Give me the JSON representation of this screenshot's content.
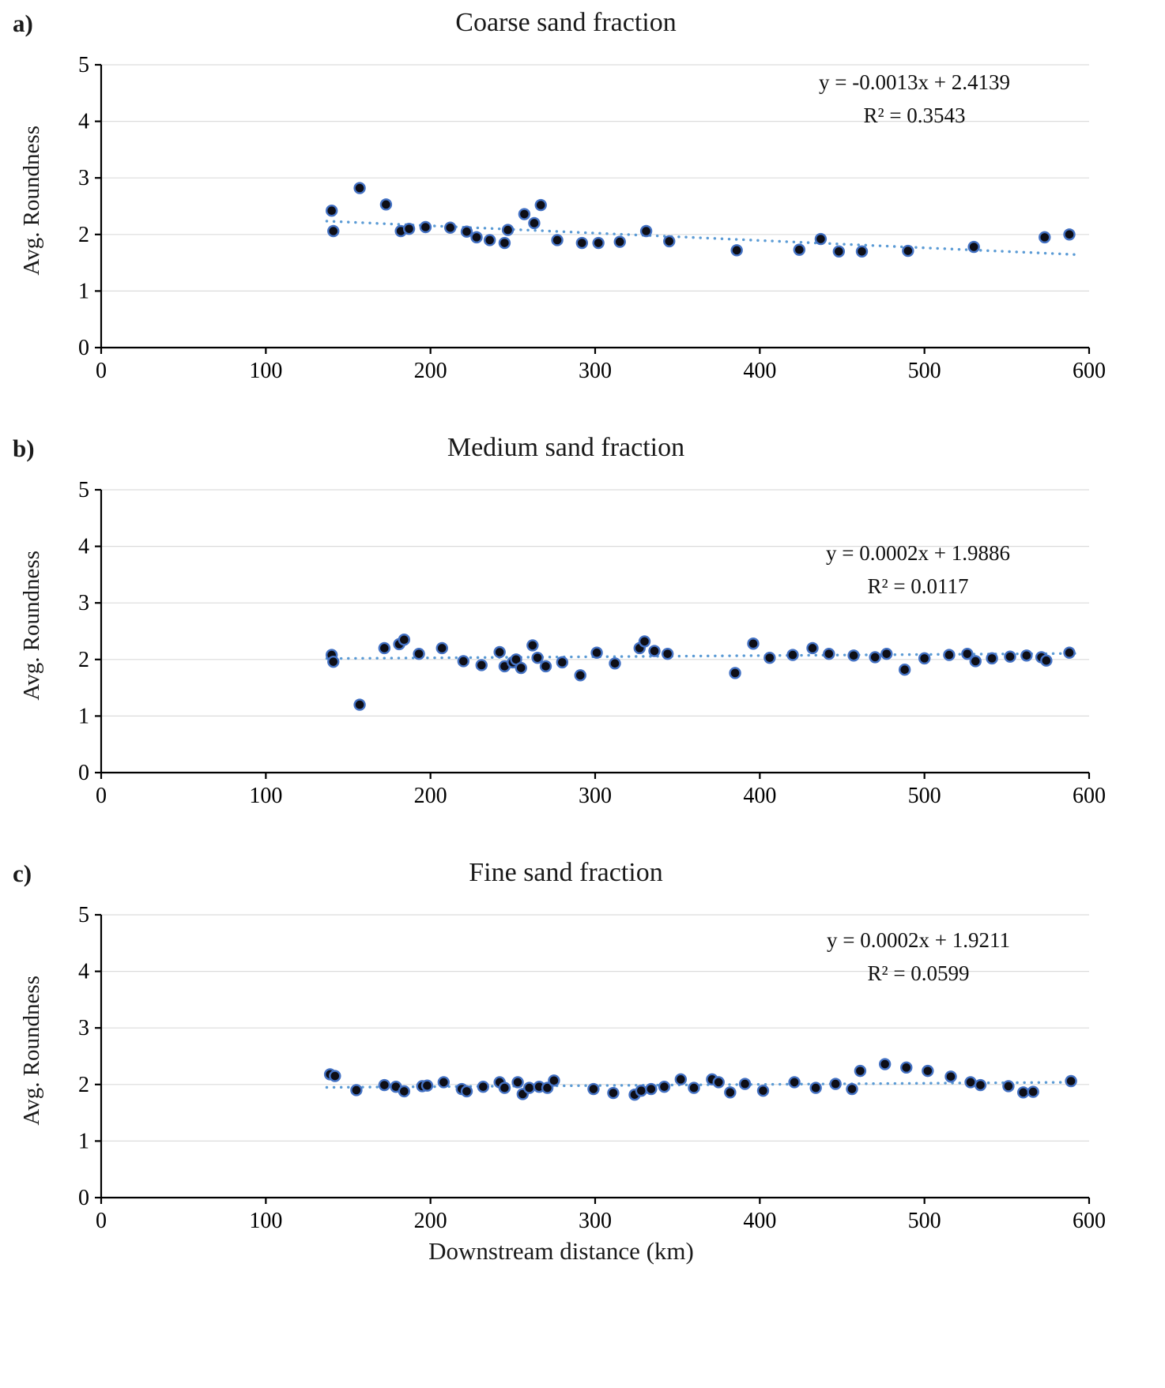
{
  "colors": {
    "point_fill": "#0e0e16",
    "point_stroke": "#4472C4",
    "trend": "#5B9BD5",
    "grid": "#DCDCDC",
    "axis": "#000000",
    "tick_text": "#000000"
  },
  "bottom_axis_title": "Downstream distance (km)",
  "chart_data": [
    {
      "type": "scatter",
      "panel_label": "a)",
      "title": "Coarse sand fraction",
      "ylabel": "Avg. Roundness",
      "xlabel": "",
      "equation": "y = -0.0013x + 2.4139",
      "r_squared": "R² = 0.3543",
      "xlim": [
        0,
        600
      ],
      "ylim": [
        0,
        5
      ],
      "x_ticks": [
        0,
        100,
        200,
        300,
        400,
        500,
        600
      ],
      "y_ticks": [
        0,
        1,
        2,
        3,
        4,
        5
      ],
      "trendline": {
        "slope": -0.0013,
        "intercept": 2.4139,
        "x_range": [
          137,
          592
        ]
      },
      "points": [
        [
          140,
          2.42
        ],
        [
          141,
          2.06
        ],
        [
          157,
          2.82
        ],
        [
          173,
          2.53
        ],
        [
          182,
          2.06
        ],
        [
          187,
          2.1
        ],
        [
          197,
          2.13
        ],
        [
          212,
          2.12
        ],
        [
          222,
          2.05
        ],
        [
          228,
          1.95
        ],
        [
          236,
          1.9
        ],
        [
          245,
          1.85
        ],
        [
          247,
          2.08
        ],
        [
          257,
          2.36
        ],
        [
          263,
          2.2
        ],
        [
          267,
          2.52
        ],
        [
          277,
          1.9
        ],
        [
          292,
          1.85
        ],
        [
          302,
          1.85
        ],
        [
          315,
          1.87
        ],
        [
          331,
          2.06
        ],
        [
          345,
          1.88
        ],
        [
          386,
          1.72
        ],
        [
          424,
          1.73
        ],
        [
          437,
          1.92
        ],
        [
          448,
          1.7
        ],
        [
          462,
          1.7
        ],
        [
          490,
          1.71
        ],
        [
          530,
          1.78
        ],
        [
          573,
          1.95
        ],
        [
          588,
          2.0
        ]
      ]
    },
    {
      "type": "scatter",
      "panel_label": "b)",
      "title": "Medium sand fraction",
      "ylabel": "Avg. Roundness",
      "xlabel": "",
      "equation": "y = 0.0002x + 1.9886",
      "r_squared": "R² = 0.0117",
      "xlim": [
        0,
        600
      ],
      "ylim": [
        0,
        5
      ],
      "x_ticks": [
        0,
        100,
        200,
        300,
        400,
        500,
        600
      ],
      "y_ticks": [
        0,
        1,
        2,
        3,
        4,
        5
      ],
      "trendline": {
        "slope": 0.0002,
        "intercept": 1.9886,
        "x_range": [
          137,
          592
        ]
      },
      "points": [
        [
          140,
          2.08
        ],
        [
          141,
          1.96
        ],
        [
          157,
          1.2
        ],
        [
          172,
          2.2
        ],
        [
          181,
          2.27
        ],
        [
          184,
          2.35
        ],
        [
          193,
          2.1
        ],
        [
          207,
          2.2
        ],
        [
          220,
          1.97
        ],
        [
          231,
          1.9
        ],
        [
          242,
          2.13
        ],
        [
          245,
          1.88
        ],
        [
          250,
          1.95
        ],
        [
          252,
          2.0
        ],
        [
          255,
          1.85
        ],
        [
          262,
          2.25
        ],
        [
          265,
          2.03
        ],
        [
          270,
          1.88
        ],
        [
          280,
          1.95
        ],
        [
          291,
          1.72
        ],
        [
          301,
          2.12
        ],
        [
          312,
          1.93
        ],
        [
          327,
          2.2
        ],
        [
          330,
          2.32
        ],
        [
          336,
          2.15
        ],
        [
          344,
          2.1
        ],
        [
          385,
          1.76
        ],
        [
          396,
          2.28
        ],
        [
          406,
          2.03
        ],
        [
          420,
          2.08
        ],
        [
          432,
          2.2
        ],
        [
          442,
          2.1
        ],
        [
          457,
          2.07
        ],
        [
          470,
          2.04
        ],
        [
          477,
          2.1
        ],
        [
          488,
          1.82
        ],
        [
          500,
          2.02
        ],
        [
          515,
          2.08
        ],
        [
          526,
          2.1
        ],
        [
          531,
          1.97
        ],
        [
          541,
          2.02
        ],
        [
          552,
          2.05
        ],
        [
          562,
          2.07
        ],
        [
          571,
          2.04
        ],
        [
          574,
          1.98
        ],
        [
          588,
          2.12
        ]
      ]
    },
    {
      "type": "scatter",
      "panel_label": "c)",
      "title": "Fine sand fraction",
      "ylabel": "Avg. Roundness",
      "xlabel": "Downstream distance (km)",
      "equation": "y = 0.0002x + 1.9211",
      "r_squared": "R² = 0.0599",
      "xlim": [
        0,
        600
      ],
      "ylim": [
        0,
        5
      ],
      "x_ticks": [
        0,
        100,
        200,
        300,
        400,
        500,
        600
      ],
      "y_ticks": [
        0,
        1,
        2,
        3,
        4,
        5
      ],
      "trendline": {
        "slope": 0.0002,
        "intercept": 1.9211,
        "x_range": [
          137,
          592
        ]
      },
      "points": [
        [
          139,
          2.18
        ],
        [
          142,
          2.15
        ],
        [
          155,
          1.9
        ],
        [
          172,
          1.99
        ],
        [
          179,
          1.96
        ],
        [
          184,
          1.88
        ],
        [
          195,
          1.97
        ],
        [
          198,
          1.98
        ],
        [
          208,
          2.04
        ],
        [
          219,
          1.92
        ],
        [
          222,
          1.88
        ],
        [
          232,
          1.96
        ],
        [
          242,
          2.04
        ],
        [
          245,
          1.94
        ],
        [
          253,
          2.04
        ],
        [
          256,
          1.83
        ],
        [
          260,
          1.94
        ],
        [
          266,
          1.96
        ],
        [
          271,
          1.94
        ],
        [
          275,
          2.07
        ],
        [
          299,
          1.92
        ],
        [
          311,
          1.85
        ],
        [
          324,
          1.82
        ],
        [
          328,
          1.89
        ],
        [
          334,
          1.92
        ],
        [
          342,
          1.96
        ],
        [
          352,
          2.09
        ],
        [
          360,
          1.94
        ],
        [
          371,
          2.09
        ],
        [
          375,
          2.04
        ],
        [
          382,
          1.86
        ],
        [
          391,
          2.01
        ],
        [
          402,
          1.89
        ],
        [
          421,
          2.04
        ],
        [
          434,
          1.94
        ],
        [
          446,
          2.01
        ],
        [
          456,
          1.92
        ],
        [
          461,
          2.24
        ],
        [
          476,
          2.36
        ],
        [
          489,
          2.3
        ],
        [
          502,
          2.24
        ],
        [
          516,
          2.14
        ],
        [
          528,
          2.04
        ],
        [
          534,
          1.99
        ],
        [
          551,
          1.97
        ],
        [
          560,
          1.86
        ],
        [
          566,
          1.87
        ],
        [
          589,
          2.06
        ]
      ]
    }
  ]
}
